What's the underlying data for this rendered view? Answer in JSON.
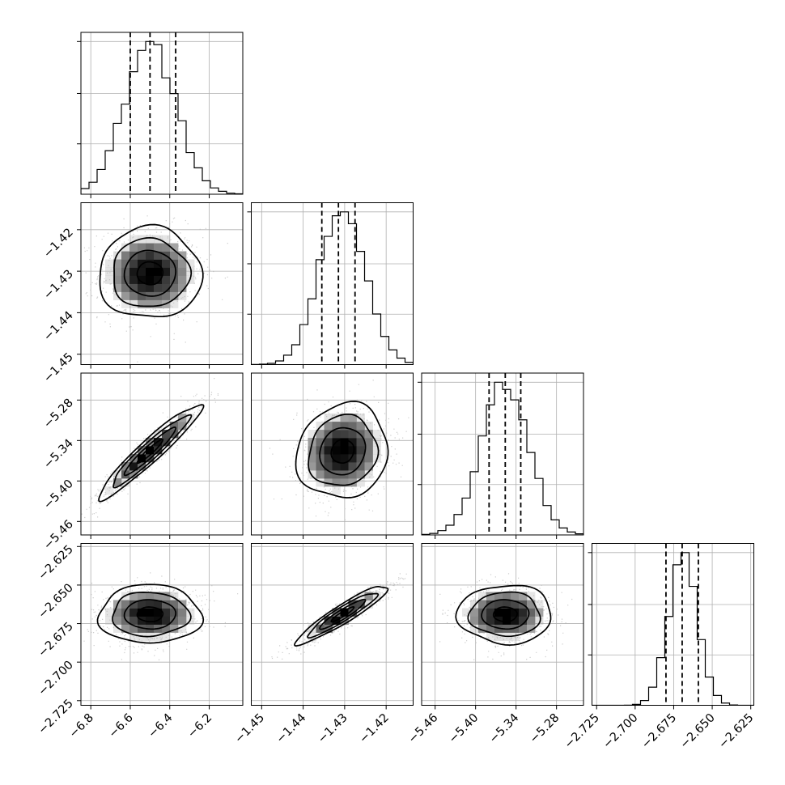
{
  "chart_data": {
    "type": "corner",
    "parameters": [
      {
        "mean": -6.5,
        "std": 0.13,
        "range": [
          -6.85,
          -6.03
        ],
        "quantiles": [
          -6.6,
          -6.5,
          -6.37
        ],
        "ticks": [
          -6.8,
          -6.6,
          -6.4,
          -6.2
        ],
        "tick_labels": [
          "−6.8",
          "−6.6",
          "−6.4",
          "−6.2"
        ]
      },
      {
        "mean": -1.4305,
        "std": 0.0055,
        "range": [
          -1.4525,
          -1.4135
        ],
        "quantiles": [
          -1.4355,
          -1.4315,
          -1.4275
        ],
        "ticks": [
          -1.45,
          -1.44,
          -1.43,
          -1.42
        ],
        "tick_labels": [
          "−1.45",
          "−1.44",
          "−1.43",
          "−1.42"
        ]
      },
      {
        "mean": -5.356,
        "std": 0.035,
        "range": [
          -5.48,
          -5.24
        ],
        "quantiles": [
          -5.38,
          -5.356,
          -5.333
        ],
        "ticks": [
          -5.46,
          -5.4,
          -5.34,
          -5.28
        ],
        "tick_labels": [
          "−5.46",
          "−5.40",
          "−5.34",
          "−5.28"
        ]
      },
      {
        "mean": -2.669,
        "std": 0.0095,
        "range": [
          -2.728,
          -2.623
        ],
        "quantiles": [
          -2.68,
          -2.6695,
          -2.659
        ],
        "ticks": [
          -2.725,
          -2.7,
          -2.675,
          -2.65,
          -2.625
        ],
        "tick_labels": [
          "−2.725",
          "−2.700",
          "−2.675",
          "−2.650",
          "−2.625"
        ]
      }
    ],
    "correlations": {
      "1-0": 0.0,
      "2-0": 0.95,
      "2-1": 0.1,
      "3-0": 0.0,
      "3-1": 0.93,
      "3-2": 0.0
    },
    "contour_levels_sigma": [
      0.5,
      1.0,
      1.5,
      2.0
    ],
    "quantile_lines": true,
    "grid": true,
    "colors": {
      "line": "#000000",
      "grid": "#b0b0b0",
      "density_max": "#000000",
      "density_min": "#ffffff"
    }
  }
}
